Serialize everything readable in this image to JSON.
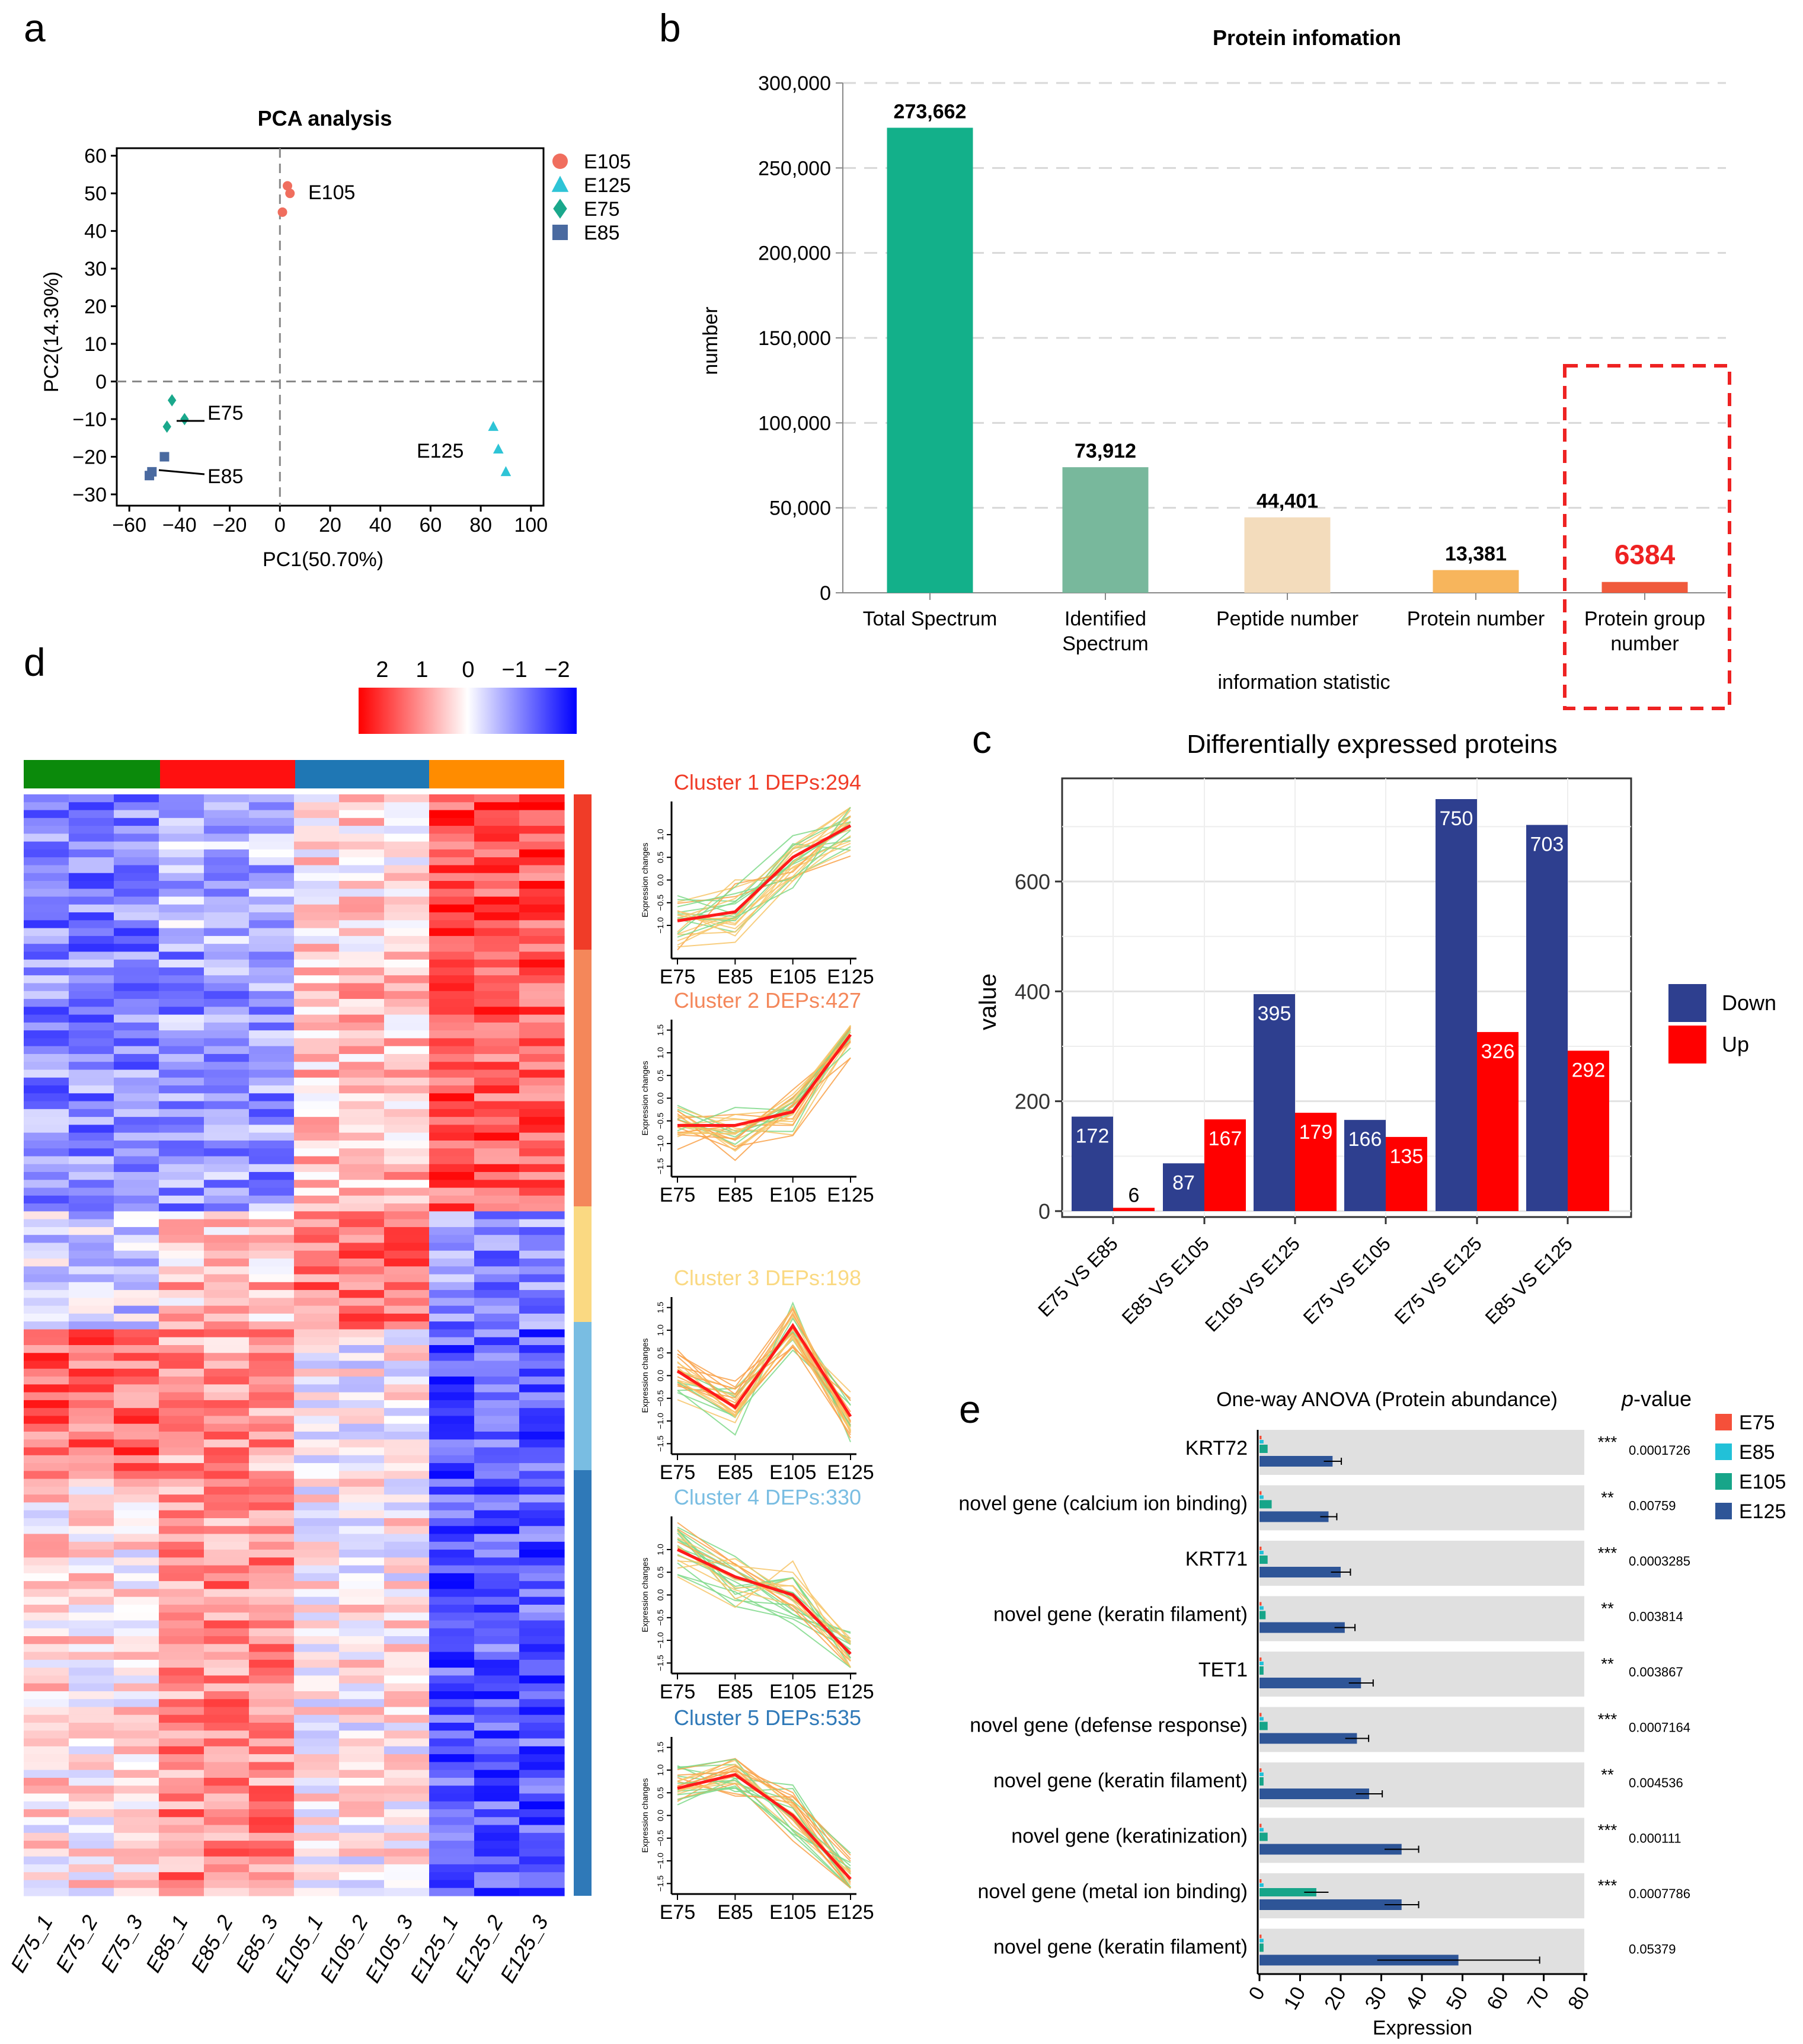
{
  "panel_labels": {
    "a": "a",
    "b": "b",
    "c": "c",
    "d": "d",
    "e": "e"
  },
  "colors": {
    "E105": "#f06e5e",
    "E125": "#2ec4d6",
    "E75": "#1aa88c",
    "E85": "#4a6aa0",
    "teal_bar": "#13b08a",
    "sage_bar": "#78b89c",
    "peach_bar": "#f3dcbc",
    "orange_bar": "#f7b55c",
    "red_bar": "#f05a3c",
    "down": "#2e3f8f",
    "up": "#ff0000",
    "highlight": "#ee2222",
    "group_green": "#0b8a0b",
    "group_red": "#ff1010",
    "group_blue": "#1f77b4",
    "group_orange": "#ff8c00",
    "panel_gray": "#e0e0e0",
    "ebar_E75": "#f5503a",
    "ebar_E85": "#22c1d8",
    "ebar_E105": "#17a589",
    "ebar_E125": "#2e5597"
  },
  "chart_data": [
    {
      "id": "a",
      "type": "scatter",
      "title": "PCA analysis",
      "xlabel": "PC1(50.70%)",
      "ylabel": "PC2(14.30%)",
      "xlim": [
        -65,
        105
      ],
      "ylim": [
        -33,
        62
      ],
      "xticks": [
        "-60",
        "-40",
        "-20",
        "0",
        "20",
        "40",
        "60",
        "80",
        "100"
      ],
      "yticks": [
        "60",
        "50",
        "40",
        "30",
        "20",
        "10",
        "0",
        "-10",
        "-20",
        "-30"
      ],
      "series": [
        {
          "name": "E105",
          "shape": "circle",
          "points": [
            [
              1,
              45
            ],
            [
              3,
              52
            ],
            [
              4,
              50
            ]
          ]
        },
        {
          "name": "E125",
          "shape": "triangle",
          "points": [
            [
              85,
              -12
            ],
            [
              87,
              -18
            ],
            [
              90,
              -24
            ]
          ]
        },
        {
          "name": "E75",
          "shape": "diamond",
          "points": [
            [
              -43,
              -5
            ],
            [
              -45,
              -12
            ],
            [
              -38,
              -10
            ]
          ]
        },
        {
          "name": "E85",
          "shape": "square",
          "points": [
            [
              -46,
              -20
            ],
            [
              -51,
              -24
            ],
            [
              -52,
              -25
            ]
          ]
        }
      ],
      "point_labels": [
        "E105",
        "E75",
        "E85",
        "E125"
      ],
      "legend": [
        "E105",
        "E125",
        "E75",
        "E85"
      ]
    },
    {
      "id": "b",
      "type": "bar",
      "title": "Protein infomation",
      "xlabel": "information statistic",
      "ylabel": "number",
      "ylim": [
        0,
        300000
      ],
      "yticks": [
        "300,000",
        "250,000",
        "200,000",
        "150,000",
        "100,000",
        "50,000",
        "0"
      ],
      "categories": [
        "Total Spectrum",
        "Identified Spectrum",
        "Peptide number",
        "Protein number",
        "Protein group number"
      ],
      "values": [
        273662,
        73912,
        44401,
        13381,
        6384
      ],
      "value_labels": [
        "273,662",
        "73,912",
        "44,401",
        "13,381",
        "6384"
      ]
    },
    {
      "id": "c",
      "type": "bar",
      "title": "Differentially expressed proteins",
      "ylabel": "value",
      "ylim": [
        0,
        800
      ],
      "yticks": [
        "600",
        "400",
        "200",
        "0"
      ],
      "categories": [
        "E75 VS E85",
        "E85 VS E105",
        "E105 VS E125",
        "E75 VS E105",
        "E75 VS E125",
        "E85 VS E125"
      ],
      "series": [
        {
          "name": "Down",
          "values": [
            172,
            87,
            395,
            166,
            750,
            703
          ]
        },
        {
          "name": "Up",
          "values": [
            6,
            167,
            179,
            135,
            326,
            292
          ]
        }
      ],
      "legend": [
        "Down",
        "Up"
      ]
    },
    {
      "id": "d",
      "type": "heatmap",
      "colorbar_ticks": [
        "2",
        "1",
        "0",
        "−1",
        "−2"
      ],
      "columns": [
        "E75_1",
        "E75_2",
        "E75_3",
        "E85_1",
        "E85_2",
        "E85_3",
        "E105_1",
        "E105_2",
        "E105_3",
        "E125_1",
        "E125_2",
        "E125_3"
      ],
      "cluster_profiles": [
        {
          "label": "Cluster 1  DEPs:294",
          "xticks": [
            "E75",
            "E85",
            "E105",
            "E125"
          ],
          "ylabel": "Expression changes",
          "yticks": [
            "1.0",
            "0.5",
            "0.0",
            "-0.5",
            "-1.0"
          ],
          "mean": [
            -0.9,
            -0.7,
            0.5,
            1.2
          ]
        },
        {
          "label": "Cluster 2  DEPs:427",
          "xticks": [
            "E75",
            "E85",
            "E105",
            "E125"
          ],
          "ylabel": "Expression changes",
          "yticks": [
            "1.5",
            "1.0",
            "0.5",
            "0.0",
            "-0.5",
            "-1.0",
            "-1.5"
          ],
          "mean": [
            -0.6,
            -0.6,
            -0.3,
            1.4
          ]
        },
        {
          "label": "Cluster 3  DEPs:198",
          "xticks": [
            "E75",
            "E85",
            "E105",
            "E125"
          ],
          "ylabel": "Expression changes",
          "yticks": [
            "1.5",
            "1.0",
            "0.5",
            "0.0",
            "-0.5",
            "-1.0",
            "-1.5"
          ],
          "mean": [
            0.1,
            -0.7,
            1.1,
            -0.9
          ]
        },
        {
          "label": "Cluster 4  DEPs:330",
          "xticks": [
            "E75",
            "E85",
            "E105",
            "E125"
          ],
          "ylabel": "Expression changes",
          "yticks": [
            "1.0",
            "0.5",
            "0.0",
            "-0.5",
            "-1.0",
            "-1.5"
          ],
          "mean": [
            1.0,
            0.4,
            0.0,
            -1.3
          ]
        },
        {
          "label": "Cluster 5  DEPs:535",
          "xticks": [
            "E75",
            "E85",
            "E105",
            "E125"
          ],
          "ylabel": "Expression changes",
          "yticks": [
            "1.5",
            "1.0",
            "0.5",
            "0.0",
            "-0.5",
            "-1.0",
            "-1.5"
          ],
          "mean": [
            0.6,
            0.9,
            0.0,
            -1.4
          ]
        }
      ]
    },
    {
      "id": "e",
      "type": "bar",
      "orientation": "horizontal",
      "title": "One-way ANOVA (Protein abundance)",
      "pvalue_header": "-value",
      "pvalue_italic": "p",
      "xlabel": "Expression",
      "xlim": [
        0,
        80
      ],
      "xticks": [
        "0",
        "10",
        "20",
        "30",
        "40",
        "50",
        "60",
        "70",
        "80"
      ],
      "legend": [
        "E75",
        "E85",
        "E105",
        "E125"
      ],
      "rows": [
        {
          "gene": "KRT72",
          "E75": 0.5,
          "E85": 1,
          "E105": 2,
          "E125": 18,
          "stars": "***",
          "p": "0.0001726"
        },
        {
          "gene": "novel gene (calcium ion binding)",
          "E75": 0.5,
          "E85": 1,
          "E105": 3,
          "E125": 17,
          "stars": "**",
          "p": "0.00759"
        },
        {
          "gene": "KRT71",
          "E75": 0.5,
          "E85": 1,
          "E105": 2,
          "E125": 20,
          "stars": "***",
          "p": "0.0003285"
        },
        {
          "gene": "novel gene (keratin filament)",
          "E75": 0.5,
          "E85": 1,
          "E105": 1.5,
          "E125": 21,
          "stars": "**",
          "p": "0.003814"
        },
        {
          "gene": "TET1",
          "E75": 0.5,
          "E85": 1,
          "E105": 1,
          "E125": 25,
          "stars": "**",
          "p": "0.003867"
        },
        {
          "gene": "novel gene (defense response)",
          "E75": 0.5,
          "E85": 1,
          "E105": 2,
          "E125": 24,
          "stars": "***",
          "p": "0.0007164"
        },
        {
          "gene": "novel gene (keratin filament)",
          "E75": 0.5,
          "E85": 1,
          "E105": 1,
          "E125": 27,
          "stars": "**",
          "p": "0.004536"
        },
        {
          "gene": "novel gene (keratinization)",
          "E75": 0.5,
          "E85": 1,
          "E105": 2,
          "E125": 35,
          "stars": "***",
          "p": "0.000111"
        },
        {
          "gene": "novel gene (metal ion binding)",
          "E75": 0.5,
          "E85": 1,
          "E105": 14,
          "E125": 35,
          "stars": "***",
          "p": "0.0007786"
        },
        {
          "gene": "novel gene (keratin filament)",
          "E75": 0.5,
          "E85": 1,
          "E105": 1,
          "E125": 49,
          "stars": "",
          "p": "0.05379"
        }
      ]
    }
  ]
}
